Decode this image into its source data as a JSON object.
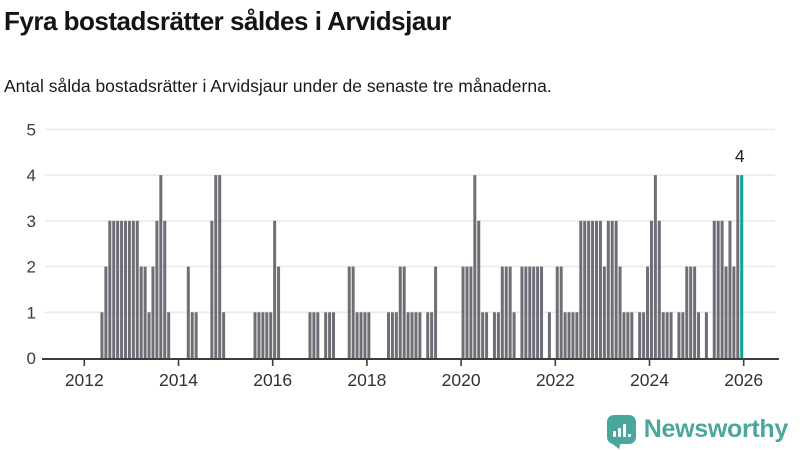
{
  "header": {
    "title": "Fyra bostadsrätter såldes i Arvidsjaur",
    "subtitle": "Antal sålda bostadsrätter i Arvidsjaur under de senaste tre månaderna."
  },
  "footer": {
    "brand": "Newsworthy",
    "logo_icon": "newsworthy-speech-bubble-bars-icon"
  },
  "colors": {
    "bar": "#6e6e76",
    "highlight": "#0ba49a",
    "brand": "#4ba69c",
    "grid": "#eaeaea",
    "axis": "#3d3d3d",
    "text": "#141414"
  },
  "chart_data": {
    "type": "bar",
    "title": "Fyra bostadsrätter såldes i Arvidsjaur",
    "ylabel": "",
    "xlabel": "",
    "ylim": [
      0,
      5
    ],
    "y_ticks": [
      0,
      1,
      2,
      3,
      4,
      5
    ],
    "x_tick_labels": [
      "2012",
      "2014",
      "2016",
      "2018",
      "2020",
      "2022",
      "2024",
      "2026"
    ],
    "grid": "horizontal",
    "start_month": "2012-01",
    "end_month": "2025-12",
    "frequency": "monthly",
    "last_value_label": "4",
    "highlight_last": true,
    "values": [
      0,
      0,
      0,
      0,
      1,
      2,
      3,
      3,
      3,
      3,
      3,
      3,
      3,
      3,
      2,
      2,
      1,
      2,
      3,
      4,
      3,
      1,
      0,
      0,
      0,
      0,
      2,
      1,
      1,
      0,
      0,
      0,
      3,
      4,
      4,
      1,
      0,
      0,
      0,
      0,
      0,
      0,
      0,
      1,
      1,
      1,
      1,
      1,
      3,
      2,
      0,
      0,
      0,
      0,
      0,
      0,
      0,
      1,
      1,
      1,
      0,
      1,
      1,
      1,
      0,
      0,
      0,
      2,
      2,
      1,
      1,
      1,
      1,
      0,
      0,
      0,
      0,
      1,
      1,
      1,
      2,
      2,
      1,
      1,
      1,
      1,
      0,
      1,
      1,
      2,
      0,
      0,
      0,
      0,
      0,
      0,
      2,
      2,
      2,
      4,
      3,
      1,
      1,
      0,
      1,
      1,
      2,
      2,
      2,
      1,
      0,
      2,
      2,
      2,
      2,
      2,
      2,
      0,
      1,
      0,
      2,
      2,
      1,
      1,
      1,
      1,
      3,
      3,
      3,
      3,
      3,
      3,
      2,
      3,
      3,
      3,
      2,
      1,
      1,
      1,
      0,
      1,
      1,
      2,
      3,
      4,
      3,
      1,
      1,
      1,
      0,
      1,
      1,
      2,
      2,
      2,
      1,
      0,
      1,
      0,
      3,
      3,
      3,
      2,
      3,
      2,
      4,
      4
    ]
  }
}
